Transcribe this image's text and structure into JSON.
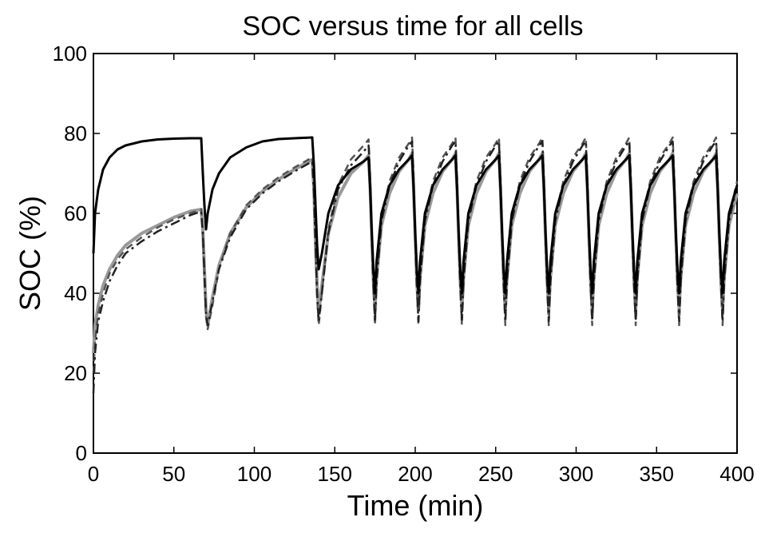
{
  "chart_data": {
    "type": "line",
    "title": "SOC versus time for all cells",
    "xlabel": "Time (min)",
    "ylabel": "SOC (%)",
    "xlim": [
      0,
      400
    ],
    "ylim": [
      0,
      100
    ],
    "xticks": [
      0,
      50,
      100,
      150,
      200,
      250,
      300,
      350,
      400
    ],
    "yticks": [
      0,
      20,
      40,
      60,
      80,
      100
    ],
    "grid": false,
    "legend": "none",
    "series": [
      {
        "style": "solid",
        "color": "#000000",
        "x": [
          0,
          1,
          3,
          6,
          10,
          15,
          20,
          30,
          40,
          50,
          60,
          67,
          68,
          69,
          70,
          71,
          74,
          78,
          85,
          95,
          105,
          115,
          125,
          136,
          137,
          138,
          139,
          140,
          142,
          146,
          152,
          160,
          168,
          171,
          172,
          173,
          174,
          175,
          176,
          179,
          184,
          190,
          196,
          198,
          199,
          200,
          201,
          202,
          203,
          206,
          211,
          217,
          223,
          225,
          226,
          227,
          228,
          229,
          230,
          233,
          238,
          244,
          250,
          252,
          253,
          254,
          255,
          256,
          257,
          260,
          265,
          271,
          277,
          279,
          280,
          281,
          282,
          283,
          284,
          287,
          292,
          298,
          304,
          306,
          307,
          308,
          309,
          310,
          311,
          314,
          319,
          325,
          331,
          333,
          334,
          335,
          336,
          337,
          338,
          341,
          346,
          352,
          358,
          360,
          361,
          362,
          363,
          364,
          365,
          368,
          373,
          379,
          385,
          387,
          388,
          389,
          390,
          391,
          392,
          395,
          400
        ],
        "y": [
          50,
          60,
          66,
          71,
          74,
          76,
          77,
          78,
          78.5,
          78.7,
          78.8,
          78.8,
          70,
          62,
          56,
          60,
          66,
          70,
          74,
          76.5,
          78,
          78.6,
          78.8,
          79,
          72,
          62,
          52,
          46,
          50,
          60,
          67,
          71,
          73,
          74,
          66,
          55,
          46,
          40,
          48,
          60,
          67,
          71,
          73.5,
          74.5,
          66,
          55,
          46,
          40,
          48,
          60,
          67,
          71,
          73.5,
          74.5,
          66,
          55,
          46,
          40,
          48,
          60,
          67,
          71,
          73.5,
          74.5,
          66,
          55,
          46,
          40,
          48,
          60,
          67,
          71,
          73.5,
          74.5,
          66,
          55,
          46,
          40,
          48,
          60,
          67,
          71,
          73.5,
          74.5,
          66,
          55,
          46,
          40,
          48,
          60,
          67,
          71,
          73.5,
          74.5,
          66,
          55,
          46,
          40,
          48,
          60,
          67,
          71,
          73.5,
          74.5,
          66,
          55,
          46,
          40,
          48,
          60,
          67,
          71,
          73.5,
          74.5,
          66,
          55,
          46,
          40,
          48,
          60,
          67
        ]
      },
      {
        "style": "dash-dot",
        "color": "#222222",
        "x": [
          0,
          1,
          3,
          6,
          10,
          15,
          20,
          30,
          40,
          50,
          60,
          67,
          68,
          69,
          70,
          71,
          74,
          78,
          85,
          95,
          105,
          115,
          125,
          136,
          137,
          138,
          139,
          140,
          142,
          146,
          152,
          160,
          168,
          171,
          172,
          173,
          174,
          175,
          176,
          179,
          184,
          190,
          196,
          198,
          199,
          200,
          201,
          202,
          203,
          206,
          211,
          217,
          223,
          225,
          226,
          227,
          228,
          229,
          230,
          233,
          238,
          244,
          250,
          252,
          253,
          254,
          255,
          256,
          257,
          260,
          265,
          271,
          277,
          279,
          280,
          281,
          282,
          283,
          284,
          287,
          292,
          298,
          304,
          306,
          307,
          308,
          309,
          310,
          311,
          314,
          319,
          325,
          331,
          333,
          334,
          335,
          336,
          337,
          338,
          341,
          346,
          352,
          358,
          360,
          361,
          362,
          363,
          364,
          365,
          368,
          373,
          379,
          385,
          387,
          388,
          389,
          390,
          391,
          392,
          395,
          400
        ],
        "y": [
          15,
          25,
          33,
          38,
          43,
          47,
          50,
          53,
          55.5,
          57.5,
          59.5,
          60.5,
          55,
          45,
          35,
          32,
          38,
          46,
          54,
          61,
          65,
          68,
          70.5,
          73,
          65,
          52,
          40,
          33,
          40,
          55,
          66,
          72,
          75.5,
          77,
          68,
          54,
          42,
          33,
          43,
          58,
          67,
          73,
          77,
          78,
          68,
          54,
          42,
          33,
          43,
          58,
          67,
          73,
          77,
          78,
          68,
          54,
          42,
          33,
          43,
          58,
          67,
          73,
          77,
          78,
          68,
          54,
          42,
          33,
          43,
          58,
          67,
          73,
          77,
          78,
          68,
          54,
          42,
          33,
          43,
          58,
          67,
          73,
          77,
          78,
          68,
          54,
          42,
          33,
          43,
          58,
          67,
          73,
          77,
          78,
          68,
          54,
          42,
          33,
          43,
          58,
          67,
          73,
          77,
          78,
          68,
          54,
          42,
          33,
          43,
          58,
          67,
          73,
          77,
          78,
          68,
          54,
          42,
          33,
          43,
          58,
          67
        ]
      },
      {
        "style": "dashed",
        "color": "#555555",
        "x": [
          0,
          1,
          3,
          6,
          10,
          15,
          20,
          30,
          40,
          50,
          60,
          67,
          68,
          69,
          70,
          71,
          74,
          78,
          85,
          95,
          105,
          115,
          125,
          136,
          137,
          138,
          139,
          140,
          142,
          146,
          152,
          160,
          168,
          171,
          172,
          173,
          174,
          175,
          176,
          179,
          184,
          190,
          196,
          198,
          199,
          200,
          201,
          202,
          203,
          206,
          211,
          217,
          223,
          225,
          226,
          227,
          228,
          229,
          230,
          233,
          238,
          244,
          250,
          252,
          253,
          254,
          255,
          256,
          257,
          260,
          265,
          271,
          277,
          279,
          280,
          281,
          282,
          283,
          284,
          287,
          292,
          298,
          304,
          306,
          307,
          308,
          309,
          310,
          311,
          314,
          319,
          325,
          331,
          333,
          334,
          335,
          336,
          337,
          338,
          341,
          346,
          352,
          358,
          360,
          361,
          362,
          363,
          364,
          365,
          368,
          373,
          379,
          385,
          387,
          388,
          389,
          390,
          391,
          392,
          395,
          400
        ],
        "y": [
          20,
          28,
          35,
          40,
          45,
          48.5,
          51,
          54,
          56.5,
          58.5,
          60,
          61,
          55,
          44,
          34,
          31,
          37,
          46,
          55,
          62,
          66,
          69,
          71.5,
          74,
          66,
          52,
          39,
          32,
          40,
          56,
          67,
          73.5,
          77,
          78.5,
          69,
          55,
          42,
          32,
          43,
          59,
          68,
          74,
          77.5,
          79,
          69,
          55,
          42,
          32,
          43,
          59,
          68,
          74,
          77.5,
          79,
          69,
          55,
          42,
          32,
          43,
          59,
          68,
          74,
          77.5,
          79,
          69,
          55,
          42,
          32,
          43,
          59,
          68,
          74,
          77.5,
          79,
          69,
          55,
          42,
          32,
          43,
          59,
          68,
          74,
          77.5,
          79,
          69,
          55,
          42,
          32,
          43,
          59,
          68,
          74,
          77.5,
          79,
          69,
          55,
          42,
          32,
          43,
          59,
          68,
          74,
          77.5,
          79,
          69,
          55,
          42,
          32,
          43,
          59,
          68,
          74,
          77.5,
          79,
          69,
          55,
          42,
          32,
          43,
          59,
          68
        ]
      },
      {
        "style": "solid",
        "color": "#999999",
        "x": [
          0,
          1,
          3,
          6,
          10,
          15,
          20,
          30,
          40,
          50,
          60,
          67,
          68,
          69,
          70,
          71,
          74,
          78,
          85,
          95,
          105,
          115,
          125,
          136,
          137,
          138,
          139,
          140,
          142,
          146,
          152,
          160,
          168,
          171,
          172,
          173,
          174,
          175,
          176,
          179,
          184,
          190,
          196,
          198,
          199,
          200,
          201,
          202,
          203,
          206,
          211,
          217,
          223,
          225,
          226,
          227,
          228,
          229,
          230,
          233,
          238,
          244,
          250,
          252,
          253,
          254,
          255,
          256,
          257,
          260,
          265,
          271,
          277,
          279,
          280,
          281,
          282,
          283,
          284,
          287,
          292,
          298,
          304,
          306,
          307,
          308,
          309,
          310,
          311,
          314,
          319,
          325,
          331,
          333,
          334,
          335,
          336,
          337,
          338,
          341,
          346,
          352,
          358,
          360,
          361,
          362,
          363,
          364,
          365,
          368,
          373,
          379,
          385,
          387,
          388,
          389,
          390,
          391,
          392,
          395,
          400
        ],
        "y": [
          25,
          32,
          37,
          42,
          46,
          49.5,
          52,
          55,
          57,
          59,
          60.5,
          61,
          56,
          46,
          36,
          32,
          39,
          47,
          55,
          61.5,
          65.5,
          68.5,
          71,
          73.5,
          66,
          53,
          42,
          35,
          42,
          55,
          64,
          70,
          73,
          74.5,
          66,
          54,
          43,
          36,
          44,
          57,
          65,
          70.5,
          73.5,
          75,
          66,
          54,
          43,
          36,
          44,
          57,
          65,
          70.5,
          73.5,
          75,
          66,
          54,
          43,
          36,
          44,
          57,
          65,
          70.5,
          73.5,
          75,
          66,
          54,
          43,
          36,
          44,
          57,
          65,
          70.5,
          73.5,
          75,
          66,
          54,
          43,
          36,
          44,
          57,
          65,
          70.5,
          73.5,
          75,
          66,
          54,
          43,
          36,
          44,
          57,
          65,
          70.5,
          73.5,
          75,
          66,
          54,
          43,
          36,
          44,
          57,
          65,
          70.5,
          73.5,
          75,
          66,
          54,
          43,
          36,
          44,
          57,
          65,
          70.5,
          73.5,
          75,
          66,
          54,
          43,
          36,
          44,
          57,
          65
        ]
      }
    ]
  }
}
